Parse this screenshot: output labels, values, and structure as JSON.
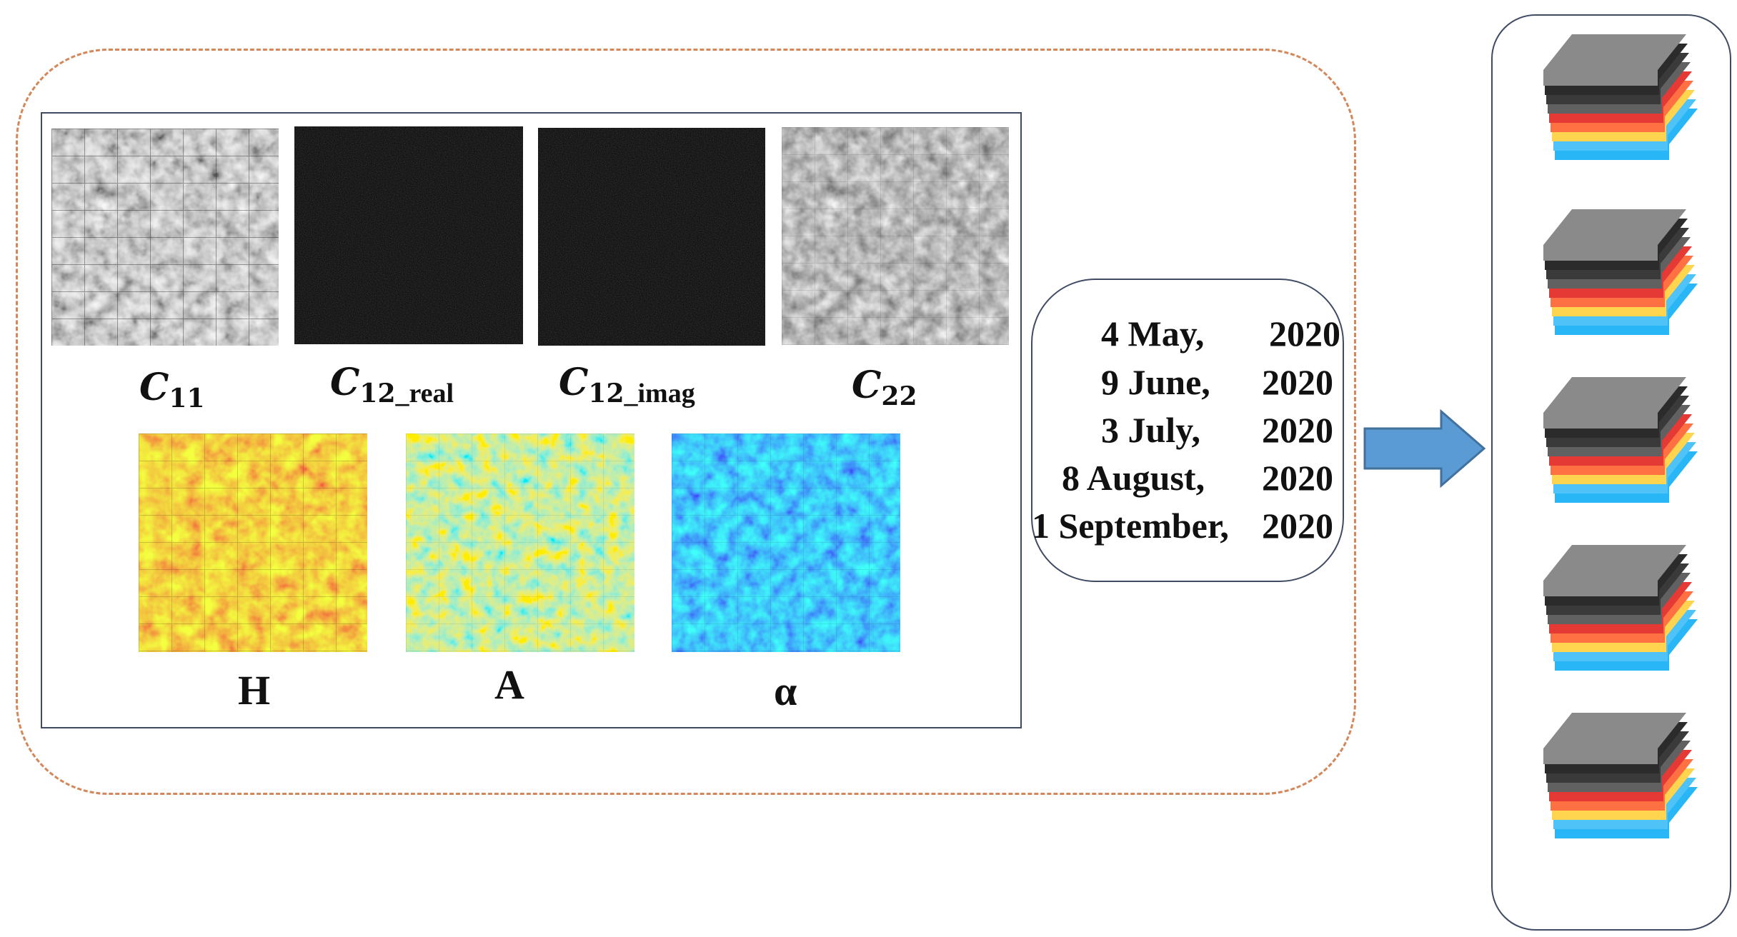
{
  "labels": {
    "c11": {
      "main": "C",
      "sub": "11",
      "suffix": ""
    },
    "c12_real": {
      "main": "C",
      "sub": "12",
      "suffix": "_real"
    },
    "c12_imag": {
      "main": "C",
      "sub": "12",
      "suffix": "_imag"
    },
    "c22": {
      "main": "C",
      "sub": "22",
      "suffix": ""
    },
    "h": "H",
    "a": "A",
    "alpha": "α"
  },
  "dates": [
    {
      "day": "4 May,",
      "year": "2020"
    },
    {
      "day": "9 June,",
      "year": "2020"
    },
    {
      "day": "3 July,",
      "year": "2020"
    },
    {
      "day": "8 August,",
      "year": "2020"
    },
    {
      "day": "1 September,",
      "year": "2020"
    }
  ],
  "colors": {
    "dashed_border": "#d4875a",
    "box_border": "#3f4a63",
    "arrow_fill": "#5b9bd5",
    "arrow_stroke": "#41719c"
  },
  "icons": {
    "c11_image": "grayscale-sar-image",
    "c12_real_image": "dark-sar-image",
    "c12_imag_image": "dark-sar-image",
    "c22_image": "dim-grayscale-sar-image",
    "h_image": "red-yellow-heatmap-image",
    "a_image": "jet-colormap-image",
    "alpha_image": "blue-colormap-image",
    "stack": "layered-image-stack-icon",
    "arrow": "right-arrow-icon"
  },
  "stack_count": 5
}
